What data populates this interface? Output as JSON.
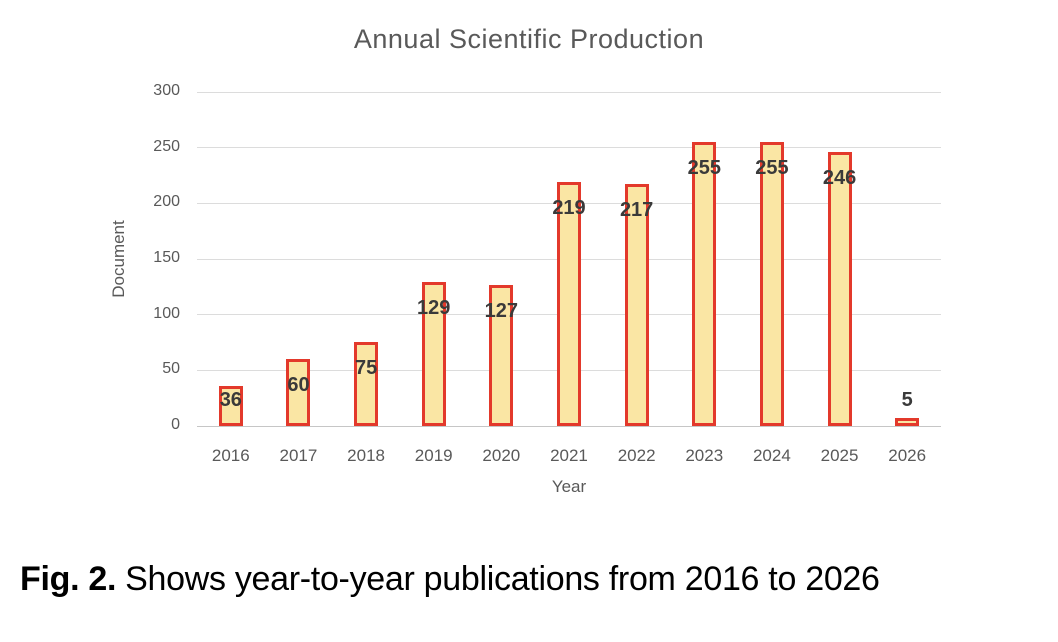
{
  "figure_caption": {
    "label": "Fig. 2.",
    "text": "Shows year-to-year publications from 2016 to 2026"
  },
  "chart_data": {
    "type": "bar",
    "title": "Annual Scientific Production",
    "xlabel": "Year",
    "ylabel": "Document",
    "categories": [
      "2016",
      "2017",
      "2018",
      "2019",
      "2020",
      "2021",
      "2022",
      "2023",
      "2024",
      "2025",
      "2026"
    ],
    "values": [
      36,
      60,
      75,
      129,
      127,
      219,
      217,
      255,
      255,
      246,
      5
    ],
    "ylim": [
      0,
      300
    ],
    "yticks": [
      0,
      50,
      100,
      150,
      200,
      250,
      300
    ],
    "grid": true,
    "legend": "none",
    "data_labels": true,
    "colors": {
      "bar_fill": "#FAE6A4",
      "bar_border": "#E3392B",
      "gridline": "#DCDCDC",
      "axis_line": "#C6C6C6",
      "axis_text": "#595959",
      "title_text": "#595959",
      "data_label": "#3A3A3A",
      "caption_text": "#000000"
    }
  }
}
